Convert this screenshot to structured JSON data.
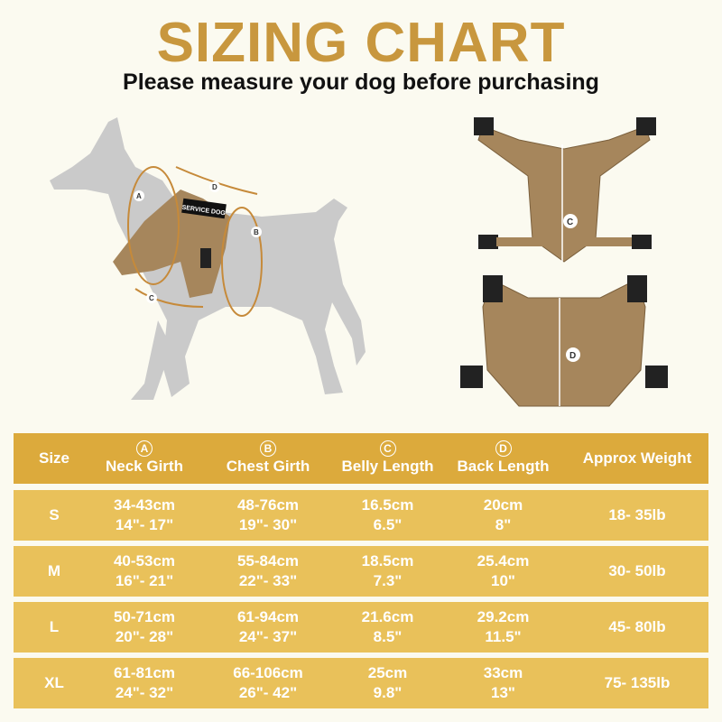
{
  "title": "SIZING CHART",
  "subtitle": "Please measure your dog before purchasing",
  "diagram": {
    "labels": [
      "A",
      "B",
      "C",
      "D"
    ],
    "patch_text": "SERVICE DOG",
    "colors": {
      "silhouette": "#c9c9c9",
      "harness": "#a6865c",
      "arrow": "#c68a3a"
    }
  },
  "table": {
    "colors": {
      "header": "#dcaa3c",
      "row": "#e9c15a",
      "text": "#ffffff"
    },
    "headers": [
      {
        "marker": "",
        "label": "Size"
      },
      {
        "marker": "A",
        "label": "Neck Girth"
      },
      {
        "marker": "B",
        "label": "Chest Girth"
      },
      {
        "marker": "C",
        "label": "Belly Length"
      },
      {
        "marker": "D",
        "label": "Back Length"
      },
      {
        "marker": "",
        "label": "Approx Weight"
      }
    ],
    "rows": [
      {
        "size": "S",
        "neck": [
          "34-43cm",
          "14\"- 17\""
        ],
        "chest": [
          "48-76cm",
          "19\"- 30\""
        ],
        "belly": [
          "16.5cm",
          "6.5\""
        ],
        "back": [
          "20cm",
          "8\""
        ],
        "weight": "18- 35lb"
      },
      {
        "size": "M",
        "neck": [
          "40-53cm",
          "16\"- 21\""
        ],
        "chest": [
          "55-84cm",
          "22\"- 33\""
        ],
        "belly": [
          "18.5cm",
          "7.3\""
        ],
        "back": [
          "25.4cm",
          "10\""
        ],
        "weight": "30- 50lb"
      },
      {
        "size": "L",
        "neck": [
          "50-71cm",
          "20\"- 28\""
        ],
        "chest": [
          "61-94cm",
          "24\"- 37\""
        ],
        "belly": [
          "21.6cm",
          "8.5\""
        ],
        "back": [
          "29.2cm",
          "11.5\""
        ],
        "weight": "45- 80lb"
      },
      {
        "size": "XL",
        "neck": [
          "61-81cm",
          "24\"- 32\""
        ],
        "chest": [
          "66-106cm",
          "26\"- 42\""
        ],
        "belly": [
          "25cm",
          "9.8\""
        ],
        "back": [
          "33cm",
          "13\""
        ],
        "weight": "75- 135lb"
      }
    ]
  }
}
